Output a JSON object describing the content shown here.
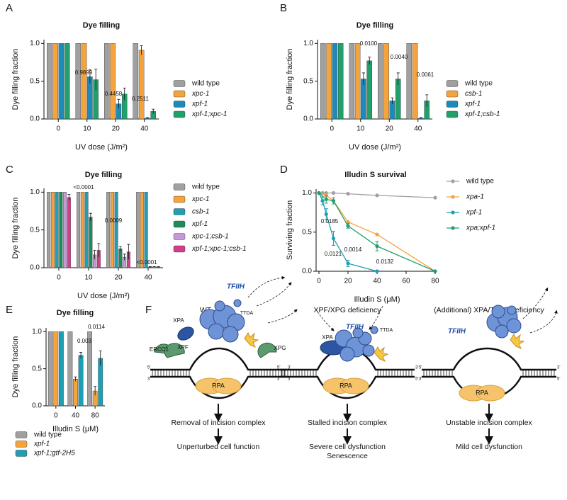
{
  "chart_data": [
    {
      "type": "bar",
      "panel": "A",
      "title": "Dye filling",
      "x_label": "UV dose (J/m²)",
      "y_label": "Dye filling fraction",
      "categories": [
        "0",
        "10",
        "20",
        "40"
      ],
      "series": [
        {
          "name": "wild type",
          "color": "#a0a0a0",
          "values": [
            1,
            1,
            1,
            1
          ]
        },
        {
          "name": "xpc-1",
          "color": "#f5a33d",
          "values": [
            1,
            1,
            1,
            0.91
          ],
          "errors": [
            0,
            0,
            0,
            0.06
          ]
        },
        {
          "name": "xpf-1",
          "color": "#1e8ab8",
          "values": [
            1,
            0.56,
            0.2,
            0.01
          ],
          "errors": [
            0,
            0.09,
            0.06,
            0.01
          ]
        },
        {
          "name": "xpf-1;xpc-1",
          "color": "#22a06b",
          "values": [
            1,
            0.52,
            0.33,
            0.1
          ],
          "errors": [
            0,
            0.14,
            0.08,
            0.03
          ]
        }
      ],
      "ylim": [
        0,
        1.05
      ],
      "yticks": [
        {
          "value": 0,
          "label": "0.0"
        },
        0.5,
        {
          "value": 1,
          "label": "1.0"
        }
      ],
      "annotations": [
        "0.9899",
        "0.4458",
        "0.2511"
      ]
    },
    {
      "type": "bar",
      "panel": "B",
      "title": "Dye filling",
      "x_label": "UV dose (J/m²)",
      "y_label": "Dye filling fraction",
      "categories": [
        "0",
        "10",
        "20",
        "40"
      ],
      "series": [
        {
          "name": "wild type",
          "color": "#a0a0a0",
          "values": [
            1,
            1,
            1,
            1
          ]
        },
        {
          "name": "csb-1",
          "color": "#f5a33d",
          "values": [
            1,
            1,
            1,
            1
          ]
        },
        {
          "name": "xpf-1",
          "color": "#1e8ab8",
          "values": [
            1,
            0.53,
            0.24,
            0.01
          ],
          "errors": [
            0,
            0.08,
            0.04,
            0.01
          ]
        },
        {
          "name": "xpf-1;csb-1",
          "color": "#22a06b",
          "values": [
            1,
            0.77,
            0.53,
            0.24
          ],
          "errors": [
            0,
            0.05,
            0.08,
            0.08
          ]
        }
      ],
      "ylim": [
        0,
        1.05
      ],
      "yticks": [
        {
          "value": 0,
          "label": "0.0"
        },
        0.5,
        {
          "value": 1,
          "label": "1.0"
        }
      ],
      "annotations": [
        "0.0100",
        "0.0040",
        "0.0061"
      ]
    },
    {
      "type": "bar",
      "panel": "C",
      "title": "Dye filling",
      "x_label": "UV dose (J/m²)",
      "y_label": "Dye filling fraction",
      "categories": [
        "0",
        "10",
        "20",
        "40"
      ],
      "series": [
        {
          "name": "wild type",
          "color": "#a0a0a0",
          "values": [
            1,
            1,
            1,
            1
          ]
        },
        {
          "name": "xpc-1",
          "color": "#f5a33d",
          "values": [
            1,
            1,
            1,
            1
          ]
        },
        {
          "name": "csb-1",
          "color": "#1f9fb4",
          "values": [
            1,
            1,
            1,
            1
          ]
        },
        {
          "name": "xpf-1",
          "color": "#1d8c5a",
          "values": [
            1,
            0.67,
            0.25,
            0.01
          ],
          "errors": [
            0,
            0.05,
            0.03,
            0.005
          ]
        },
        {
          "name": "xpc-1;csb-1",
          "color": "#c49ad6",
          "values": [
            1,
            0.17,
            0.14,
            0.01
          ],
          "errors": [
            0,
            0.06,
            0.04,
            0.005
          ]
        },
        {
          "name": "xpf-1;xpc-1;csb-1",
          "color": "#d43d8b",
          "values": [
            0.93,
            0.23,
            0.21,
            0.01
          ],
          "errors": [
            0.04,
            0.09,
            0.1,
            0.005
          ]
        }
      ],
      "ylim": [
        0,
        1.05
      ],
      "yticks": [
        {
          "value": 0,
          "label": "0.0"
        },
        0.5,
        {
          "value": 1,
          "label": "1.0"
        }
      ],
      "annotations": [
        "<0.0001",
        "0.0009",
        "<0.0001"
      ]
    },
    {
      "type": "line",
      "panel": "D",
      "title": "Illudin S survival",
      "x_label": "Illudin S (μM)",
      "y_label": "Surviving fraction",
      "series": [
        {
          "name": "wild type",
          "color": "#a0a0a0",
          "x": [
            0,
            2.5,
            5,
            10,
            20,
            40,
            80
          ],
          "values": [
            1,
            1,
            1,
            1,
            0.99,
            0.97,
            0.94
          ]
        },
        {
          "name": "xpa-1",
          "color": "#f5a33d",
          "x": [
            0,
            5,
            10,
            20,
            40,
            80
          ],
          "values": [
            1,
            0.97,
            0.9,
            0.63,
            0.47,
            0
          ]
        },
        {
          "name": "xpf-1",
          "color": "#1f9fb4",
          "x": [
            0,
            2.5,
            5,
            10,
            20,
            40
          ],
          "values": [
            1,
            0.9,
            0.73,
            0.42,
            0.1,
            0
          ],
          "errors": [
            0,
            0.05,
            0.07,
            0.09,
            0.04,
            0.01
          ]
        },
        {
          "name": "xpa;xpf-1",
          "color": "#22a06b",
          "x": [
            0,
            5,
            10,
            20,
            40,
            80
          ],
          "values": [
            1,
            0.92,
            0.9,
            0.58,
            0.32,
            0
          ],
          "errors": [
            0,
            0.05,
            0.04,
            0.03,
            0.06,
            0
          ]
        }
      ],
      "xlim": [
        0,
        80
      ],
      "xticks": [
        0,
        20,
        40,
        60,
        80
      ],
      "ylim": [
        0,
        1.05
      ],
      "yticks": [
        {
          "value": 0,
          "label": "0.0"
        },
        0.5,
        {
          "value": 1,
          "label": "1.0"
        }
      ],
      "annotations": [
        "0.0185",
        "0.0121",
        "0.0014",
        "0.0132"
      ]
    },
    {
      "type": "bar",
      "panel": "E",
      "title": "Dye filling",
      "x_label": "Illudin S (μM)",
      "y_label": "Dye filling fraction",
      "categories": [
        "0",
        "40",
        "80"
      ],
      "series": [
        {
          "name": "wild type",
          "color": "#a0a0a0",
          "values": [
            1,
            1,
            1
          ]
        },
        {
          "name": "xpf-1",
          "color": "#f5a33d",
          "values": [
            1,
            0.36,
            0.2
          ],
          "errors": [
            0,
            0.03,
            0.06
          ]
        },
        {
          "name": "xpf-1;gtf-2H5",
          "color": "#1f9fb4",
          "values": [
            1,
            0.68,
            0.64
          ],
          "errors": [
            0,
            0.04,
            0.1
          ]
        }
      ],
      "ylim": [
        0,
        1.05
      ],
      "yticks": [
        {
          "value": 0,
          "label": "0.0"
        },
        0.5,
        {
          "value": 1,
          "label": "1.0"
        }
      ],
      "annotations": [
        "0.003",
        "0.0114"
      ]
    }
  ],
  "diagram": {
    "panel": "F",
    "columns": [
      {
        "title": "WT",
        "step": "Removal of incision complex",
        "outcome": [
          "Unperturbed cell function"
        ]
      },
      {
        "title": "XPF/XPG deficiency",
        "step": "Stalled incision complex",
        "outcome": [
          "Severe cell dysfunction",
          "Senescence"
        ]
      },
      {
        "title": "(Additional) XPA/TTDA deficiency",
        "step": "Unstable incision complex",
        "outcome": [
          "Mild cell dysfunction"
        ]
      }
    ],
    "labels": {
      "tfiih": "TFIIH",
      "ttda": "TTDA",
      "xpa": "XPA",
      "xpf": "XPF",
      "ercc1": "ERCC1",
      "xpg": "XPG",
      "rpa": "RPA",
      "five": "5'",
      "three": "3'"
    }
  }
}
